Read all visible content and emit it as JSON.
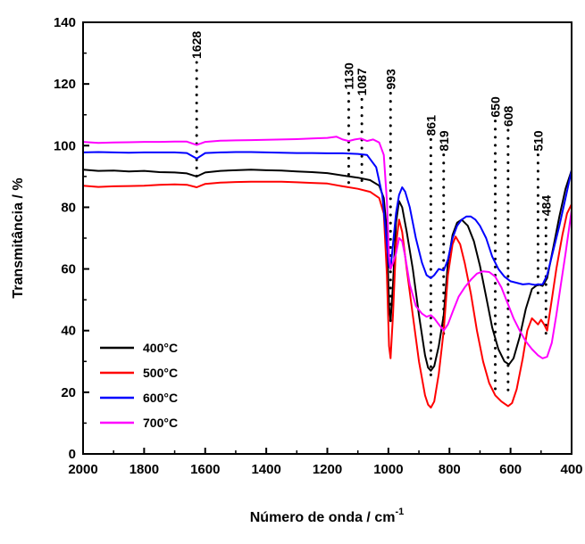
{
  "chart_data": {
    "type": "line",
    "xlabel": "Número de onda / cm",
    "xlabel_superscript": "-1",
    "ylabel": "Transmitância / %",
    "xlim": [
      2000,
      400
    ],
    "ylim": [
      0,
      140
    ],
    "x_reversed": true,
    "grid": false,
    "legend_position": "bottom-left",
    "x_ticks": [
      "2000",
      "1800",
      "1600",
      "1400",
      "1200",
      "1000",
      "800",
      "600",
      "400"
    ],
    "y_ticks": [
      "0",
      "20",
      "40",
      "60",
      "80",
      "100",
      "120",
      "140"
    ],
    "series": [
      {
        "name": "400°C",
        "color": "#000000",
        "points": [
          [
            2000,
            92.2
          ],
          [
            1950,
            91.8
          ],
          [
            1900,
            91.9
          ],
          [
            1850,
            91.6
          ],
          [
            1800,
            91.8
          ],
          [
            1750,
            91.4
          ],
          [
            1700,
            91.3
          ],
          [
            1660,
            91.0
          ],
          [
            1628,
            90.0
          ],
          [
            1600,
            91.3
          ],
          [
            1550,
            91.8
          ],
          [
            1500,
            92.0
          ],
          [
            1450,
            92.2
          ],
          [
            1400,
            92.0
          ],
          [
            1350,
            91.9
          ],
          [
            1300,
            91.6
          ],
          [
            1250,
            91.4
          ],
          [
            1200,
            91.1
          ],
          [
            1150,
            90.3
          ],
          [
            1100,
            89.6
          ],
          [
            1060,
            88.8
          ],
          [
            1030,
            87.0
          ],
          [
            1015,
            83.0
          ],
          [
            1005,
            72.0
          ],
          [
            998,
            48.0
          ],
          [
            993,
            43.0
          ],
          [
            985,
            55.0
          ],
          [
            975,
            75.0
          ],
          [
            965,
            82.0
          ],
          [
            955,
            80.0
          ],
          [
            940,
            72.0
          ],
          [
            920,
            60.0
          ],
          [
            900,
            45.0
          ],
          [
            880,
            32.0
          ],
          [
            870,
            28.0
          ],
          [
            861,
            27.0
          ],
          [
            850,
            28.5
          ],
          [
            835,
            35.0
          ],
          [
            819,
            45.0
          ],
          [
            805,
            62.0
          ],
          [
            790,
            71.0
          ],
          [
            775,
            75.0
          ],
          [
            760,
            76.0
          ],
          [
            740,
            74.0
          ],
          [
            720,
            69.0
          ],
          [
            700,
            61.0
          ],
          [
            680,
            51.0
          ],
          [
            660,
            41.0
          ],
          [
            640,
            34.0
          ],
          [
            620,
            30.0
          ],
          [
            605,
            29.0
          ],
          [
            590,
            31.0
          ],
          [
            570,
            38.0
          ],
          [
            550,
            47.0
          ],
          [
            530,
            53.5
          ],
          [
            510,
            55.0
          ],
          [
            495,
            54.5
          ],
          [
            480,
            57.0
          ],
          [
            460,
            67.0
          ],
          [
            440,
            77.0
          ],
          [
            420,
            86.0
          ],
          [
            400,
            92.0
          ]
        ]
      },
      {
        "name": "500°C",
        "color": "#ff0000",
        "points": [
          [
            2000,
            87.0
          ],
          [
            1950,
            86.6
          ],
          [
            1900,
            86.8
          ],
          [
            1850,
            86.9
          ],
          [
            1800,
            87.0
          ],
          [
            1750,
            87.3
          ],
          [
            1700,
            87.4
          ],
          [
            1660,
            87.3
          ],
          [
            1628,
            86.5
          ],
          [
            1600,
            87.6
          ],
          [
            1550,
            88.0
          ],
          [
            1500,
            88.2
          ],
          [
            1450,
            88.3
          ],
          [
            1400,
            88.3
          ],
          [
            1350,
            88.3
          ],
          [
            1300,
            88.1
          ],
          [
            1250,
            87.9
          ],
          [
            1200,
            87.7
          ],
          [
            1150,
            86.8
          ],
          [
            1100,
            86.0
          ],
          [
            1060,
            85.0
          ],
          [
            1030,
            83.0
          ],
          [
            1015,
            78.0
          ],
          [
            1005,
            58.0
          ],
          [
            998,
            35.0
          ],
          [
            993,
            31.0
          ],
          [
            985,
            45.0
          ],
          [
            975,
            68.0
          ],
          [
            965,
            76.0
          ],
          [
            955,
            72.0
          ],
          [
            940,
            60.0
          ],
          [
            920,
            45.0
          ],
          [
            900,
            30.0
          ],
          [
            880,
            19.0
          ],
          [
            870,
            16.0
          ],
          [
            861,
            15.0
          ],
          [
            850,
            17.0
          ],
          [
            835,
            26.0
          ],
          [
            819,
            40.0
          ],
          [
            805,
            58.0
          ],
          [
            790,
            68.0
          ],
          [
            780,
            70.5
          ],
          [
            765,
            68.0
          ],
          [
            750,
            62.0
          ],
          [
            730,
            52.0
          ],
          [
            710,
            40.0
          ],
          [
            690,
            30.0
          ],
          [
            670,
            23.0
          ],
          [
            650,
            19.0
          ],
          [
            630,
            17.0
          ],
          [
            608,
            15.5
          ],
          [
            595,
            16.5
          ],
          [
            580,
            21.0
          ],
          [
            560,
            31.0
          ],
          [
            545,
            40.0
          ],
          [
            530,
            44.0
          ],
          [
            520,
            43.0
          ],
          [
            510,
            42.0
          ],
          [
            500,
            43.5
          ],
          [
            490,
            42.0
          ],
          [
            480,
            40.0
          ],
          [
            465,
            50.0
          ],
          [
            450,
            60.0
          ],
          [
            430,
            71.0
          ],
          [
            415,
            78.0
          ],
          [
            400,
            81.0
          ]
        ]
      },
      {
        "name": "600°C",
        "color": "#0000ff",
        "points": [
          [
            2000,
            97.8
          ],
          [
            1950,
            97.9
          ],
          [
            1900,
            97.8
          ],
          [
            1850,
            97.7
          ],
          [
            1800,
            97.8
          ],
          [
            1750,
            97.8
          ],
          [
            1700,
            97.8
          ],
          [
            1660,
            97.6
          ],
          [
            1628,
            95.8
          ],
          [
            1600,
            97.6
          ],
          [
            1550,
            97.8
          ],
          [
            1500,
            97.9
          ],
          [
            1450,
            97.9
          ],
          [
            1400,
            97.8
          ],
          [
            1350,
            97.7
          ],
          [
            1300,
            97.6
          ],
          [
            1250,
            97.6
          ],
          [
            1200,
            97.5
          ],
          [
            1150,
            97.5
          ],
          [
            1100,
            97.3
          ],
          [
            1070,
            97.0
          ],
          [
            1040,
            93.0
          ],
          [
            1020,
            84.0
          ],
          [
            1005,
            68.0
          ],
          [
            998,
            61.0
          ],
          [
            993,
            60.0
          ],
          [
            985,
            68.0
          ],
          [
            975,
            78.0
          ],
          [
            965,
            84.0
          ],
          [
            955,
            86.5
          ],
          [
            945,
            85.0
          ],
          [
            930,
            80.0
          ],
          [
            910,
            70.0
          ],
          [
            890,
            62.0
          ],
          [
            875,
            58.0
          ],
          [
            861,
            57.0
          ],
          [
            850,
            58.0
          ],
          [
            835,
            60.0
          ],
          [
            819,
            59.5
          ],
          [
            805,
            63.0
          ],
          [
            790,
            70.0
          ],
          [
            775,
            74.0
          ],
          [
            760,
            76.0
          ],
          [
            745,
            77.0
          ],
          [
            730,
            77.0
          ],
          [
            715,
            76.0
          ],
          [
            700,
            74.0
          ],
          [
            680,
            70.0
          ],
          [
            660,
            64.0
          ],
          [
            640,
            60.0
          ],
          [
            620,
            57.5
          ],
          [
            600,
            56.0
          ],
          [
            580,
            55.5
          ],
          [
            560,
            55.0
          ],
          [
            540,
            55.2
          ],
          [
            520,
            54.8
          ],
          [
            510,
            55.0
          ],
          [
            495,
            55.0
          ],
          [
            480,
            58.0
          ],
          [
            460,
            66.0
          ],
          [
            440,
            74.0
          ],
          [
            420,
            83.0
          ],
          [
            400,
            92.0
          ]
        ]
      },
      {
        "name": "700°C",
        "color": "#ff00ff",
        "points": [
          [
            2000,
            101.2
          ],
          [
            1950,
            100.9
          ],
          [
            1900,
            101.0
          ],
          [
            1850,
            101.1
          ],
          [
            1800,
            101.2
          ],
          [
            1750,
            101.2
          ],
          [
            1700,
            101.3
          ],
          [
            1660,
            101.3
          ],
          [
            1628,
            100.2
          ],
          [
            1600,
            101.2
          ],
          [
            1550,
            101.6
          ],
          [
            1500,
            101.7
          ],
          [
            1450,
            101.8
          ],
          [
            1400,
            101.9
          ],
          [
            1350,
            102.0
          ],
          [
            1300,
            102.1
          ],
          [
            1250,
            102.3
          ],
          [
            1200,
            102.5
          ],
          [
            1170,
            102.9
          ],
          [
            1150,
            102.0
          ],
          [
            1130,
            101.5
          ],
          [
            1110,
            102.0
          ],
          [
            1090,
            102.3
          ],
          [
            1070,
            101.5
          ],
          [
            1050,
            102.0
          ],
          [
            1030,
            101.0
          ],
          [
            1015,
            97.0
          ],
          [
            1005,
            82.0
          ],
          [
            998,
            64.0
          ],
          [
            993,
            60.0
          ],
          [
            985,
            62.0
          ],
          [
            975,
            65.0
          ],
          [
            965,
            70.0
          ],
          [
            955,
            69.0
          ],
          [
            945,
            64.0
          ],
          [
            930,
            55.0
          ],
          [
            910,
            48.0
          ],
          [
            890,
            45.5
          ],
          [
            875,
            44.5
          ],
          [
            861,
            45.0
          ],
          [
            850,
            44.0
          ],
          [
            835,
            42.0
          ],
          [
            819,
            40.0
          ],
          [
            805,
            42.0
          ],
          [
            790,
            46.0
          ],
          [
            770,
            51.0
          ],
          [
            750,
            54.0
          ],
          [
            730,
            56.5
          ],
          [
            710,
            58.5
          ],
          [
            690,
            59.2
          ],
          [
            670,
            59.0
          ],
          [
            650,
            57.5
          ],
          [
            630,
            54.0
          ],
          [
            610,
            49.0
          ],
          [
            590,
            44.0
          ],
          [
            570,
            40.0
          ],
          [
            550,
            36.5
          ],
          [
            530,
            34.0
          ],
          [
            510,
            32.0
          ],
          [
            495,
            31.0
          ],
          [
            480,
            31.5
          ],
          [
            465,
            36.0
          ],
          [
            450,
            45.0
          ],
          [
            435,
            55.0
          ],
          [
            420,
            65.0
          ],
          [
            400,
            79.0
          ]
        ]
      }
    ],
    "annotations": [
      {
        "label": "1628",
        "x": 1628,
        "y_from": 127,
        "y_to": 89
      },
      {
        "label": "1130",
        "x": 1130,
        "y_from": 117,
        "y_to": 87
      },
      {
        "label": "1087",
        "x": 1087,
        "y_from": 115,
        "y_to": 87
      },
      {
        "label": "993",
        "x": 993,
        "y_from": 117,
        "y_to": 42
      },
      {
        "label": "861",
        "x": 861,
        "y_from": 102,
        "y_to": 24
      },
      {
        "label": "819",
        "x": 819,
        "y_from": 97,
        "y_to": 38
      },
      {
        "label": "650",
        "x": 650,
        "y_from": 108,
        "y_to": 20
      },
      {
        "label": "608",
        "x": 608,
        "y_from": 105,
        "y_to": 20
      },
      {
        "label": "510",
        "x": 510,
        "y_from": 97,
        "y_to": 52
      },
      {
        "label": "484",
        "x": 484,
        "y_from": 76,
        "y_to": 38
      }
    ]
  }
}
